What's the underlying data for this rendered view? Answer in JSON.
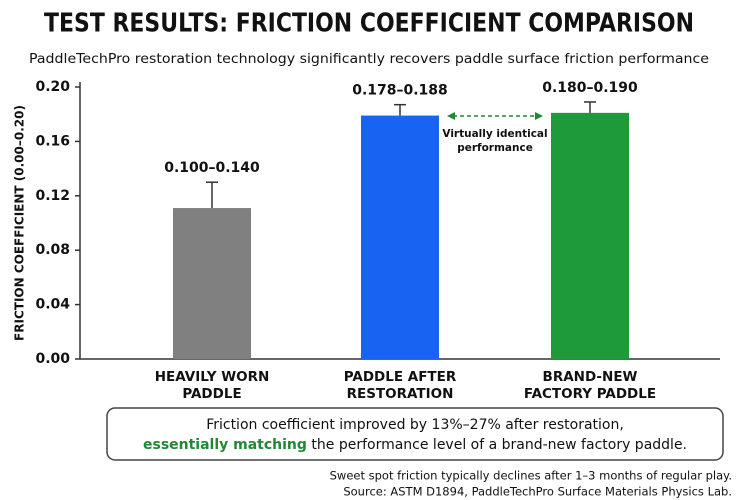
{
  "chart_data": {
    "type": "bar",
    "title": "TEST RESULTS: FRICTION COEFFICIENT COMPARISON",
    "subtitle": "PaddleTechPro restoration technology significantly recovers paddle surface friction performance",
    "y_label": "FRICTION COEFFICIENT (0.00–0.20)",
    "categories": [
      [
        "HEAVILY WORN",
        "PADDLE"
      ],
      [
        "PADDLE AFTER",
        "RESTORATION"
      ],
      [
        "BRAND-NEW",
        "FACTORY PADDLE"
      ]
    ],
    "values": [
      0.111,
      0.179,
      0.181
    ],
    "errors": [
      0.019,
      0.008,
      0.008
    ],
    "range_labels": [
      "0.100–0.140",
      "0.178–0.188",
      "0.180–0.190"
    ],
    "colors": [
      "#808080",
      "#1763f2",
      "#1f9a3a"
    ],
    "label_colors": [
      "#111111",
      "#1a3fb8",
      "#1f8a33"
    ],
    "ylim": [
      0,
      0.2
    ],
    "yticks": [
      {
        "value": 0,
        "label": "0.00"
      },
      {
        "value": 0.04,
        "label": "0.04"
      },
      {
        "value": 0.08,
        "label": "0.08"
      },
      {
        "value": 0.12,
        "label": "0.12"
      },
      {
        "value": 0.16,
        "label": "0.16"
      },
      {
        "value": 0.2,
        "label": "0.20"
      }
    ],
    "annotation": [
      "Virtually identical",
      "performance"
    ],
    "callout": {
      "line1": "Friction coefficient improved by 13%–27% after restoration,",
      "highlight": "essentially matching",
      "rest": " the performance level of a brand-new factory paddle."
    },
    "footnotes": [
      "Sweet spot friction typically declines after 1–3 months of regular play.",
      "Source: ASTM D1894, PaddleTechPro Surface Materials Physics Lab."
    ]
  }
}
